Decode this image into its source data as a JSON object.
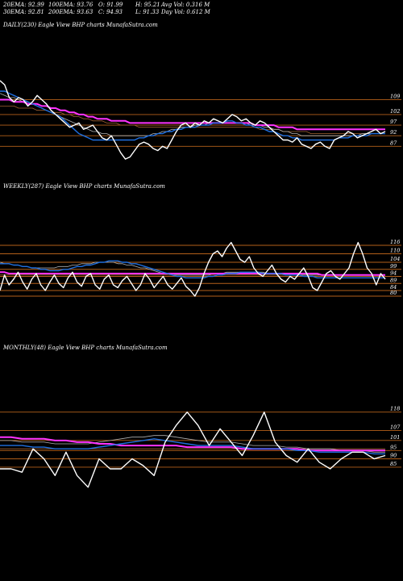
{
  "header": {
    "ema20": "20EMA: 92.99",
    "ema100": "100EMA: 93.76",
    "open": "O: 91.99",
    "high": "H: 95.21",
    "avg_vol": "Avg Vol: 0.316  M",
    "ema30": "30EMA: 92.81",
    "ema200": "200EMA: 93.63",
    "close": "C: 94.93",
    "low": "L: 91.33",
    "day_vol": "Day Vol: 0.612  M"
  },
  "colors": {
    "background": "#000000",
    "price": "#ffffff",
    "ema_short": "#1f6fe0",
    "ema_long": "#ff33ff",
    "level_lines": "#b4601a",
    "ema_grey": "#b0b0b0",
    "ema_brown": "#a06030"
  },
  "chart_data": [
    {
      "type": "line",
      "title": "DAILY(230) Eagle  View  BHP charts MunafaSutra.com",
      "y_ticks": [
        "109",
        "102",
        "97",
        "92",
        "87"
      ],
      "levels": [
        109,
        102,
        97,
        92,
        87
      ],
      "ylim": [
        78,
        121
      ],
      "series": [
        {
          "role": "price",
          "values": [
            118,
            116,
            110,
            108,
            110,
            109,
            106,
            108,
            111,
            109,
            107,
            104,
            102,
            100,
            98,
            96,
            97,
            98,
            95,
            96,
            97,
            94,
            91,
            90,
            92,
            88,
            84,
            81,
            82,
            85,
            88,
            89,
            88,
            86,
            85,
            87,
            86,
            90,
            94,
            97,
            98,
            96,
            98,
            97,
            99,
            98,
            100,
            99,
            98,
            100,
            102,
            101,
            99,
            100,
            98,
            97,
            99,
            98,
            96,
            94,
            92,
            90,
            90,
            89,
            91,
            88,
            87,
            86,
            88,
            89,
            87,
            86,
            90,
            91,
            92,
            94,
            93,
            91,
            92,
            93,
            94,
            95,
            93,
            94
          ]
        },
        {
          "role": "ema_short",
          "values": [
            113,
            113,
            112,
            111,
            110,
            109,
            108,
            107,
            106,
            105,
            104,
            103,
            102,
            101,
            99,
            97,
            95,
            93,
            92,
            91,
            90,
            90,
            90,
            90,
            90,
            90,
            90,
            90,
            90,
            90,
            91,
            91,
            92,
            92,
            93,
            93,
            94,
            94,
            95,
            95,
            96,
            96,
            96,
            97,
            97,
            97,
            98,
            98,
            98,
            99,
            99,
            98,
            98,
            97,
            97,
            96,
            96,
            95,
            94,
            94,
            93,
            92,
            92,
            91,
            91,
            90,
            90,
            90,
            90,
            90,
            90,
            90,
            90,
            91,
            91,
            91,
            92,
            92,
            92,
            92,
            93,
            93,
            93,
            93
          ]
        },
        {
          "role": "ema_long",
          "values": [
            109,
            109,
            109,
            108,
            108,
            108,
            107,
            107,
            107,
            106,
            106,
            105,
            105,
            104,
            104,
            103,
            103,
            102,
            102,
            101,
            101,
            100,
            100,
            100,
            99,
            99,
            99,
            99,
            98,
            98,
            98,
            98,
            98,
            98,
            98,
            98,
            98,
            98,
            98,
            98,
            98,
            98,
            98,
            98,
            98,
            98,
            98,
            98,
            98,
            98,
            98,
            98,
            98,
            98,
            98,
            97,
            97,
            97,
            97,
            97,
            96,
            96,
            96,
            96,
            95,
            95,
            95,
            95,
            95,
            95,
            95,
            95,
            95,
            95,
            95,
            95,
            95,
            95,
            95,
            95,
            95,
            95,
            95,
            95
          ]
        },
        {
          "role": "ema_grey",
          "values": [
            112,
            111,
            110,
            110,
            109,
            108,
            108,
            107,
            106,
            105,
            104,
            103,
            102,
            101,
            100,
            99,
            98,
            97,
            96,
            95,
            94,
            94,
            93,
            93,
            92,
            92,
            92,
            92,
            92,
            92,
            92,
            92,
            92,
            93,
            93,
            94,
            94,
            95,
            95,
            96,
            96,
            96,
            97,
            97,
            97,
            98,
            98,
            98,
            98,
            98,
            98,
            98,
            98,
            98,
            97,
            97,
            97,
            96,
            96,
            95,
            95,
            94,
            94,
            93,
            93,
            92,
            92,
            92,
            92,
            92,
            92,
            92,
            92,
            92,
            92,
            92,
            92,
            92,
            93,
            93,
            93,
            93,
            93,
            93
          ]
        },
        {
          "role": "ema_brown",
          "values": [
            106,
            106,
            106,
            106,
            105,
            105,
            105,
            105,
            104,
            104,
            104,
            103,
            103,
            103,
            102,
            102,
            101,
            101,
            100,
            100,
            99,
            99,
            99,
            98,
            98,
            98,
            97,
            97,
            97,
            97,
            96,
            96,
            96,
            96,
            96,
            96,
            96,
            96,
            96,
            96,
            96,
            96,
            96,
            96,
            96,
            96,
            96,
            96,
            96,
            96,
            96,
            96,
            96,
            96,
            96,
            96,
            95,
            95,
            95,
            95,
            95,
            94,
            94,
            94,
            94,
            94,
            94,
            93,
            93,
            93,
            93,
            93,
            93,
            93,
            93,
            93,
            93,
            93,
            93,
            93,
            93,
            93,
            93,
            93
          ]
        }
      ]
    },
    {
      "type": "line",
      "title": "WEEKLY(287) Eagle  View  BHP charts MunafaSutra.com",
      "y_ticks": [
        "116",
        "110",
        "104",
        "99",
        "94",
        "89",
        "84",
        "80"
      ],
      "levels": [
        116,
        110,
        104,
        99,
        94,
        89,
        84,
        80
      ],
      "ylim": [
        64,
        124
      ],
      "series": [
        {
          "role": "price",
          "values": [
            84,
            95,
            88,
            92,
            97,
            90,
            85,
            92,
            96,
            88,
            84,
            90,
            95,
            89,
            86,
            93,
            97,
            90,
            87,
            94,
            96,
            88,
            85,
            92,
            95,
            88,
            86,
            91,
            94,
            89,
            84,
            88,
            96,
            92,
            86,
            90,
            94,
            88,
            85,
            89,
            93,
            87,
            84,
            80,
            86,
            96,
            104,
            110,
            112,
            108,
            114,
            118,
            112,
            106,
            104,
            108,
            100,
            96,
            94,
            98,
            102,
            96,
            92,
            90,
            94,
            92,
            96,
            100,
            94,
            86,
            84,
            90,
            96,
            98,
            94,
            92,
            96,
            100,
            110,
            118,
            110,
            100,
            96,
            88,
            96,
            92
          ]
        },
        {
          "role": "ema_short",
          "values": [
            103,
            103,
            103,
            102,
            102,
            101,
            101,
            100,
            100,
            99,
            99,
            98,
            98,
            98,
            99,
            99,
            100,
            101,
            101,
            102,
            102,
            103,
            104,
            104,
            105,
            105,
            105,
            104,
            104,
            103,
            103,
            102,
            101,
            100,
            99,
            98,
            97,
            96,
            95,
            94,
            94,
            93,
            93,
            93,
            93,
            93,
            94,
            94,
            95,
            95,
            96,
            96,
            96,
            97,
            97,
            97,
            97,
            97,
            96,
            96,
            96,
            96,
            96,
            95,
            95,
            95,
            95,
            94,
            94,
            94,
            93,
            93,
            93,
            93,
            93,
            93,
            93,
            93,
            93,
            93,
            93,
            93,
            93,
            93,
            93,
            93
          ]
        },
        {
          "role": "ema_long",
          "values": [
            97,
            97,
            96,
            96,
            96,
            96,
            96,
            96,
            96,
            96,
            96,
            96,
            96,
            96,
            96,
            96,
            96,
            96,
            96,
            96,
            96,
            96,
            96,
            96,
            96,
            96,
            96,
            96,
            96,
            96,
            96,
            96,
            96,
            96,
            96,
            96,
            96,
            96,
            96,
            96,
            96,
            96,
            96,
            96,
            96,
            96,
            96,
            96,
            96,
            96,
            96,
            96,
            96,
            96,
            96,
            96,
            96,
            96,
            96,
            96,
            96,
            96,
            96,
            96,
            96,
            96,
            96,
            96,
            96,
            96,
            96,
            95,
            95,
            95,
            95,
            95,
            95,
            95,
            95,
            95,
            95,
            95,
            95,
            95,
            95,
            95
          ]
        },
        {
          "role": "ema_grey",
          "values": [
            104,
            103,
            103,
            102,
            102,
            101,
            101,
            100,
            100,
            100,
            100,
            100,
            100,
            101,
            101,
            101,
            102,
            102,
            103,
            103,
            103,
            104,
            104,
            104,
            104,
            104,
            103,
            103,
            102,
            102,
            101,
            100,
            100,
            99,
            98,
            97,
            96,
            96,
            95,
            95,
            95,
            95,
            95,
            95,
            95,
            95,
            95,
            96,
            96,
            96,
            97,
            97,
            97,
            97,
            97,
            97,
            97,
            97,
            97,
            96,
            96,
            96,
            96,
            96,
            96,
            96,
            95,
            95,
            95,
            95,
            95,
            95,
            95,
            95,
            95,
            95,
            95,
            95,
            95,
            95,
            95,
            95,
            95,
            95,
            95,
            95
          ]
        },
        {
          "role": "ema_brown",
          "values": [
            95,
            95,
            95,
            95,
            95,
            95,
            95,
            95,
            95,
            95,
            95,
            95,
            95,
            95,
            95,
            95,
            95,
            95,
            95,
            95,
            95,
            95,
            95,
            95,
            95,
            95,
            95,
            95,
            95,
            95,
            95,
            95,
            95,
            95,
            95,
            95,
            95,
            95,
            95,
            95,
            95,
            95,
            95,
            95,
            95,
            95,
            95,
            95,
            95,
            95,
            95,
            95,
            95,
            95,
            95,
            95,
            95,
            95,
            95,
            95,
            95,
            95,
            95,
            95,
            95,
            95,
            95,
            95,
            95,
            95,
            95,
            95,
            95,
            95,
            95,
            95,
            95,
            95,
            95,
            95,
            95,
            95,
            95,
            95,
            95,
            95
          ]
        }
      ]
    },
    {
      "type": "line",
      "title": "MONTHLY(48) Eagle  View  BHP charts MunafaSutra.com",
      "y_ticks": [
        "118",
        "107",
        "101",
        "95",
        "90",
        "85"
      ],
      "levels": [
        118,
        107,
        101,
        95,
        90,
        85
      ],
      "ylim": [
        70,
        128
      ],
      "series": [
        {
          "role": "price",
          "values": [
            84,
            84,
            82,
            96,
            90,
            80,
            94,
            80,
            73,
            90,
            84,
            84,
            90,
            86,
            80,
            100,
            110,
            118,
            110,
            98,
            108,
            100,
            92,
            104,
            118,
            100,
            92,
            88,
            96,
            88,
            84,
            90,
            94,
            94,
            90,
            92
          ]
        },
        {
          "role": "ema_short",
          "values": [
            98,
            98,
            98,
            97,
            97,
            96,
            96,
            96,
            96,
            97,
            98,
            99,
            100,
            101,
            102,
            101,
            100,
            99,
            98,
            98,
            98,
            98,
            97,
            96,
            96,
            96,
            96,
            95,
            95,
            94,
            94,
            94,
            94,
            94,
            93,
            93
          ]
        },
        {
          "role": "ema_long",
          "values": [
            103,
            103,
            102,
            102,
            102,
            101,
            101,
            100,
            100,
            99,
            99,
            98,
            98,
            98,
            98,
            98,
            98,
            97,
            97,
            97,
            97,
            97,
            96,
            96,
            96,
            96,
            96,
            96,
            95,
            95,
            95,
            95,
            95,
            95,
            95,
            95
          ]
        },
        {
          "role": "ema_grey",
          "values": [
            101,
            101,
            100,
            100,
            100,
            99,
            99,
            99,
            99,
            100,
            101,
            102,
            103,
            103,
            104,
            104,
            103,
            102,
            101,
            100,
            100,
            100,
            99,
            98,
            98,
            98,
            97,
            97,
            96,
            96,
            96,
            95,
            95,
            95,
            94,
            94
          ]
        },
        {
          "role": "ema_brown",
          "values": [
            96,
            96,
            96,
            96,
            96,
            96,
            96,
            96,
            96,
            96,
            96,
            96,
            96,
            96,
            96,
            96,
            96,
            96,
            96,
            96,
            96,
            96,
            96,
            96,
            96,
            96,
            96,
            96,
            96,
            96,
            96,
            96,
            96,
            96,
            96,
            96
          ]
        }
      ]
    }
  ]
}
